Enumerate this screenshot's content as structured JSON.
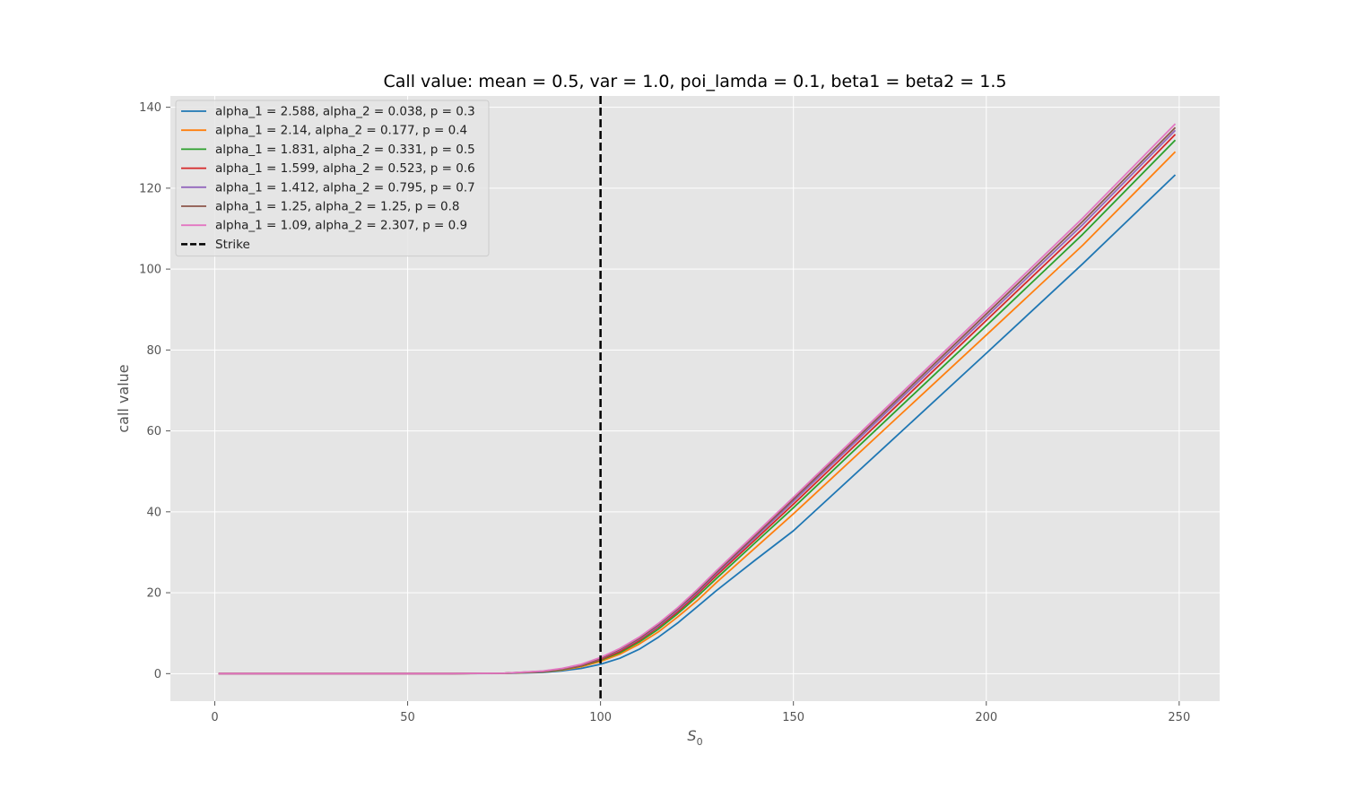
{
  "chart_data": {
    "type": "line",
    "title": "Call value:  mean = 0.5, var = 1.0, poi_lamda = 0.1,  beta1 =  beta2 = 1.5",
    "xlabel_main": "S",
    "xlabel_sub": "0",
    "ylabel": "call value",
    "xlim": [
      -11.5,
      260.5
    ],
    "ylim": [
      -6.8,
      142.8
    ],
    "xticks": [
      0,
      50,
      100,
      150,
      200,
      250
    ],
    "yticks": [
      0,
      20,
      40,
      60,
      80,
      100,
      120,
      140
    ],
    "xtick_labels": [
      "0",
      "50",
      "100",
      "150",
      "200",
      "250"
    ],
    "ytick_labels": [
      "0",
      "20",
      "40",
      "60",
      "80",
      "100",
      "120",
      "140"
    ],
    "grid": true,
    "legend_position": "top-left",
    "strike": {
      "name": "Strike",
      "x": 100,
      "color": "#000000",
      "style": "dashed"
    },
    "series": [
      {
        "name": "alpha_1 = 2.588, alpha_2 = 0.038, p = 0.3",
        "color": "#1f77b4",
        "x": [
          1,
          60,
          75,
          85,
          90,
          95,
          100,
          105,
          110,
          115,
          120,
          125,
          130,
          140,
          150,
          175,
          200,
          225,
          249
        ],
        "y": [
          0,
          0,
          0.05,
          0.3,
          0.7,
          1.3,
          2.3,
          3.8,
          6.0,
          9.0,
          12.5,
          16.5,
          20.5,
          28.0,
          35.3,
          57.2,
          79.2,
          101.3,
          123.3
        ]
      },
      {
        "name": "alpha_1 = 2.14, alpha_2 = 0.177, p = 0.4",
        "color": "#ff7f0e",
        "x": [
          1,
          60,
          75,
          85,
          90,
          95,
          100,
          105,
          110,
          115,
          120,
          125,
          130,
          140,
          150,
          175,
          200,
          225,
          249
        ],
        "y": [
          0,
          0,
          0.06,
          0.4,
          0.9,
          1.7,
          3.0,
          4.8,
          7.3,
          10.3,
          14.0,
          18.0,
          22.5,
          31.0,
          39.5,
          61.6,
          83.7,
          105.9,
          129.0
        ]
      },
      {
        "name": "alpha_1 = 1.831, alpha_2 = 0.331, p = 0.5",
        "color": "#2ca02c",
        "x": [
          1,
          60,
          75,
          85,
          90,
          95,
          100,
          105,
          110,
          115,
          120,
          125,
          130,
          140,
          150,
          175,
          200,
          225,
          249
        ],
        "y": [
          0,
          0,
          0.08,
          0.45,
          1.0,
          1.9,
          3.3,
          5.2,
          7.8,
          11.0,
          14.8,
          19.0,
          23.5,
          32.3,
          41.0,
          63.5,
          86.0,
          108.6,
          131.9
        ]
      },
      {
        "name": "alpha_1 = 1.599, alpha_2 = 0.523, p = 0.6",
        "color": "#d62728",
        "x": [
          1,
          60,
          75,
          85,
          90,
          95,
          100,
          105,
          110,
          115,
          120,
          125,
          130,
          140,
          150,
          175,
          200,
          225,
          249
        ],
        "y": [
          0,
          0,
          0.09,
          0.5,
          1.1,
          2.0,
          3.5,
          5.5,
          8.2,
          11.5,
          15.3,
          19.6,
          24.2,
          33.0,
          41.9,
          64.6,
          87.3,
          110.0,
          133.3
        ]
      },
      {
        "name": "alpha_1 = 1.412, alpha_2 = 0.795, p = 0.7",
        "color": "#9467bd",
        "x": [
          1,
          60,
          75,
          85,
          90,
          95,
          100,
          105,
          110,
          115,
          120,
          125,
          130,
          140,
          150,
          175,
          200,
          225,
          249
        ],
        "y": [
          0,
          0,
          0.1,
          0.55,
          1.15,
          2.1,
          3.7,
          5.8,
          8.5,
          11.8,
          15.7,
          20.0,
          24.7,
          33.6,
          42.6,
          65.4,
          88.2,
          111.0,
          134.3
        ]
      },
      {
        "name": "alpha_1 = 1.25, alpha_2 = 1.25, p = 0.8",
        "color": "#8c564b",
        "x": [
          1,
          60,
          75,
          85,
          90,
          95,
          100,
          105,
          110,
          115,
          120,
          125,
          130,
          140,
          150,
          175,
          200,
          225,
          249
        ],
        "y": [
          0,
          0,
          0.1,
          0.6,
          1.2,
          2.2,
          3.8,
          6.0,
          8.7,
          12.1,
          16.0,
          20.3,
          25.0,
          34.0,
          43.1,
          66.0,
          88.9,
          111.8,
          135.0
        ]
      },
      {
        "name": "alpha_1 = 1.09, alpha_2 = 2.307, p = 0.9",
        "color": "#e377c2",
        "x": [
          1,
          60,
          75,
          85,
          90,
          95,
          100,
          105,
          110,
          115,
          120,
          125,
          130,
          140,
          150,
          175,
          200,
          225,
          249
        ],
        "y": [
          0,
          0,
          0.1,
          0.65,
          1.3,
          2.3,
          4.0,
          6.2,
          9.0,
          12.4,
          16.3,
          20.7,
          25.4,
          34.5,
          43.6,
          66.6,
          89.6,
          112.6,
          135.9
        ]
      }
    ]
  }
}
